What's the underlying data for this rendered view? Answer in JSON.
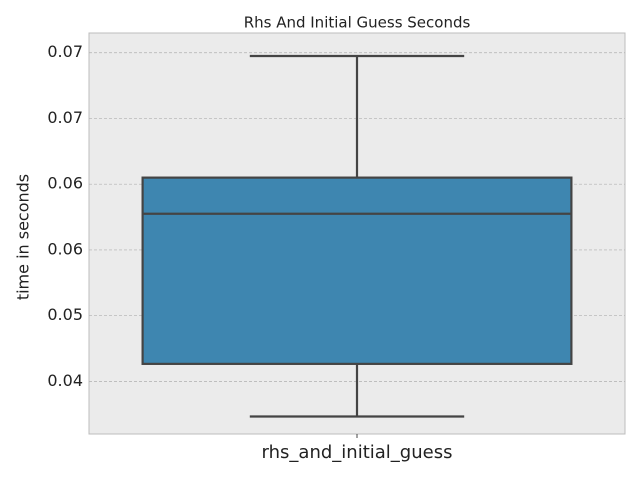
{
  "chart_data": {
    "type": "box",
    "title": "Rhs And Initial Guess Seconds",
    "y_label": "time in seconds",
    "categories": [
      "rhs_and_initial_guess"
    ],
    "whisker_low": [
      0.0408
    ],
    "q1": [
      0.0456
    ],
    "median": [
      0.0593
    ],
    "q3": [
      0.0626
    ],
    "whisker_high": [
      0.0737
    ],
    "color": "#3e86b0",
    "ylim": [
      0.0392,
      0.0758
    ],
    "yticks": [
      {
        "value": 0.044,
        "label": "0.04"
      },
      {
        "value": 0.05,
        "label": "0.05"
      },
      {
        "value": 0.056,
        "label": "0.06"
      },
      {
        "value": 0.062,
        "label": "0.06"
      },
      {
        "value": 0.068,
        "label": "0.07"
      },
      {
        "value": 0.074,
        "label": "0.07"
      }
    ],
    "grid": true
  }
}
